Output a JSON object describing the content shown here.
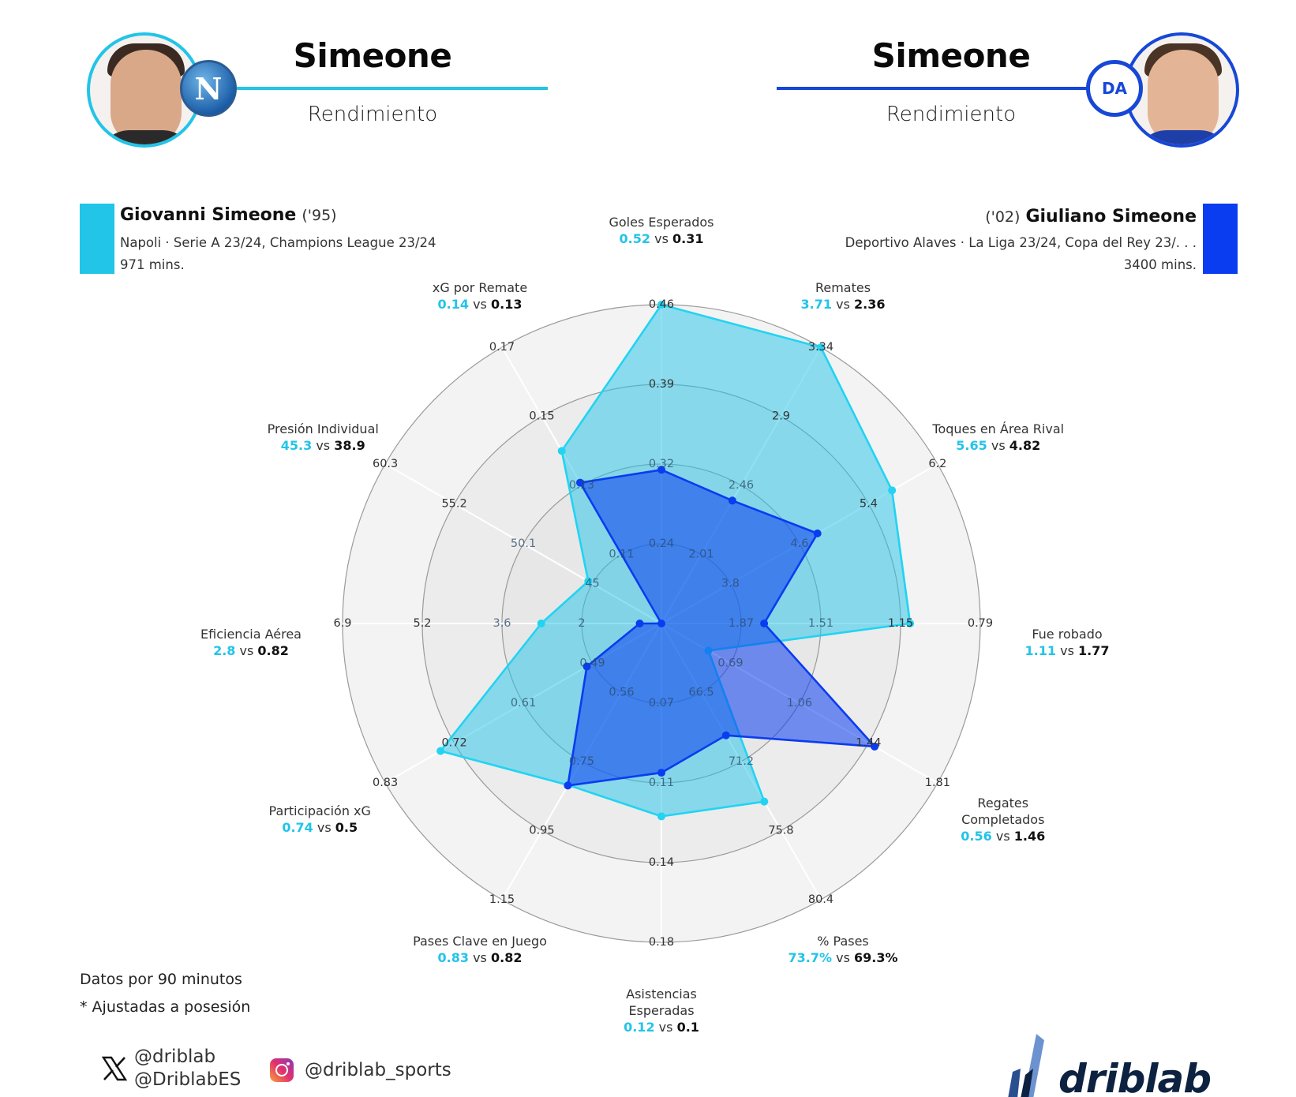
{
  "header": {
    "left": {
      "title": "Simeone",
      "subtitle": "Rendimiento",
      "accent": "#22c4e8",
      "club_badge": "N"
    },
    "right": {
      "title": "Simeone",
      "subtitle": "Rendimiento",
      "accent": "#1747d6",
      "club_badge": "DA"
    }
  },
  "players": [
    {
      "name": "Giovanni Simeone",
      "year": "('95)",
      "info": "Napoli · Serie A 23/24, Champions League 23/24",
      "minutes": "971 mins.",
      "color": "#22c4e8"
    },
    {
      "name": "Giuliano Simeone",
      "year": "('02)",
      "info": "Deportivo Alaves · La Liga 23/24, Copa del Rey 23/. . .",
      "minutes": "3400 mins.",
      "color": "#0a3cf0"
    }
  ],
  "notes": {
    "per90": "Datos por 90 minutos",
    "possession": "* Ajustadas a posesión"
  },
  "social": {
    "x_handle_1": "@driblab",
    "x_handle_2": "@DriblabES",
    "instagram": "@driblab_sports"
  },
  "logo": {
    "text": "driblab"
  },
  "chart_data": {
    "type": "radar",
    "title": "Simeone vs Simeone — Rendimiento",
    "series": [
      {
        "name": "Giovanni Simeone",
        "color": "#22c4e8",
        "values": [
          0.52,
          3.71,
          5.65,
          1.11,
          0.56,
          73.7,
          0.12,
          0.83,
          0.74,
          2.8,
          45.3,
          0.14
        ],
        "display": [
          "0.52",
          "3.71",
          "5.65",
          "1.11",
          "0.56",
          "73.7%",
          "0.12",
          "0.83",
          "0.74",
          "2.8",
          "45.3",
          "0.14"
        ],
        "norm": [
          1.0,
          1.0,
          0.835,
          0.78,
          0.17,
          0.645,
          0.605,
          0.585,
          0.8,
          0.377,
          0.265,
          0.625
        ]
      },
      {
        "name": "Giuliano Simeone",
        "color": "#0a3cf0",
        "values": [
          0.31,
          2.36,
          4.82,
          1.77,
          1.46,
          69.3,
          0.1,
          0.82,
          0.5,
          0.82,
          38.9,
          0.13
        ],
        "display": [
          "0.31",
          "2.36",
          "4.82",
          "1.77",
          "1.46",
          "69.3%",
          "0.1",
          "0.82",
          "0.5",
          "0.82",
          "38.9",
          "0.13"
        ],
        "norm": [
          0.482,
          0.445,
          0.565,
          0.322,
          0.772,
          0.405,
          0.468,
          0.587,
          0.27,
          0.068,
          0.0,
          0.51
        ]
      }
    ],
    "axes": [
      {
        "label": "Goles Esperados",
        "ticks": [
          "0.24",
          "0.32",
          "0.39",
          "0.46"
        ]
      },
      {
        "label": "Remates",
        "ticks": [
          "2.01",
          "2.46",
          "2.9",
          "3.34"
        ]
      },
      {
        "label": "Toques en Área Rival",
        "ticks": [
          "3.8",
          "4.6",
          "5.4",
          "6.2"
        ]
      },
      {
        "label": "Fue robado",
        "ticks": [
          "1.87",
          "1.51",
          "1.15",
          "0.79"
        ]
      },
      {
        "label": "Regates Completados",
        "ticks": [
          "0.69",
          "1.06",
          "1.44",
          "1.81"
        ]
      },
      {
        "label": "% Pases",
        "ticks": [
          "66.5",
          "71.2",
          "75.8",
          "80.4"
        ]
      },
      {
        "label": "Asistencias Esperadas",
        "ticks": [
          "0.07",
          "0.11",
          "0.14",
          "0.18"
        ]
      },
      {
        "label": "Pases Clave en Juego",
        "ticks": [
          "0.56",
          "0.75",
          "0.95",
          "1.15"
        ]
      },
      {
        "label": "Participación xG",
        "ticks": [
          "0.49",
          "0.61",
          "0.72",
          "0.83"
        ]
      },
      {
        "label": "Eficiencia Aérea",
        "ticks": [
          "2",
          "3.6",
          "5.2",
          "6.9"
        ]
      },
      {
        "label": "Presión Individual",
        "ticks": [
          "45",
          "50.1",
          "55.2",
          "60.3"
        ]
      },
      {
        "label": "xG por Remate",
        "ticks": [
          "0.11",
          "0.13",
          "0.15",
          "0.17"
        ]
      }
    ],
    "rings": 4,
    "legend_position": "top"
  },
  "labels": [
    {
      "line1": "Goles Esperados",
      "line2": "",
      "v1": "0.52",
      "v2": "0.31"
    },
    {
      "line1": "Remates",
      "line2": "",
      "v1": "3.71",
      "v2": "2.36"
    },
    {
      "line1": "Toques en Área Rival",
      "line2": "",
      "v1": "5.65",
      "v2": "4.82"
    },
    {
      "line1": "Fue robado",
      "line2": "",
      "v1": "1.11",
      "v2": "1.77"
    },
    {
      "line1": "Regates",
      "line2": "Completados",
      "v1": "0.56",
      "v2": "1.46"
    },
    {
      "line1": "% Pases",
      "line2": "",
      "v1": "73.7%",
      "v2": "69.3%"
    },
    {
      "line1": "Asistencias",
      "line2": "Esperadas",
      "v1": "0.12",
      "v2": "0.1"
    },
    {
      "line1": "Pases Clave en Juego",
      "line2": "",
      "v1": "0.83",
      "v2": "0.82"
    },
    {
      "line1": "Participación xG",
      "line2": "",
      "v1": "0.74",
      "v2": "0.5"
    },
    {
      "line1": "Eficiencia Aérea",
      "line2": "",
      "v1": "2.8",
      "v2": "0.82"
    },
    {
      "line1": "Presión Individual",
      "line2": "",
      "v1": "45.3",
      "v2": "38.9"
    },
    {
      "line1": "xG por Remate",
      "line2": "",
      "v1": "0.14",
      "v2": "0.13"
    }
  ],
  "vs": "vs"
}
